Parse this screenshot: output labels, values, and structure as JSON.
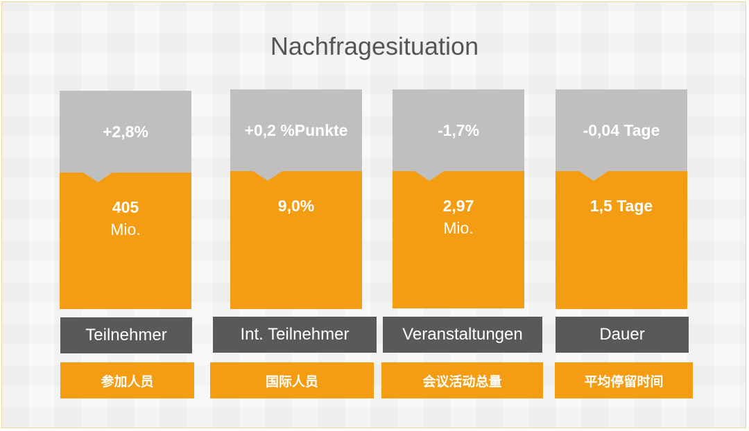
{
  "title": "Nachfragesituation",
  "colors": {
    "accent": "#f49c12",
    "grey_top": "#bfbfbf",
    "label_bg": "#595959"
  },
  "items": [
    {
      "change": "+2,8%",
      "value": "405",
      "unit": "Mio.",
      "label": "Teilnehmer",
      "label_cn": "参加人员"
    },
    {
      "change": "+0,2 %Punkte",
      "value": "9,0%",
      "unit": "",
      "label": "Int. Teilnehmer",
      "label_cn": "国际人员"
    },
    {
      "change": "-1,7%",
      "value": "2,97",
      "unit": "Mio.",
      "label": "Veranstaltungen",
      "label_cn": "会议活动总量"
    },
    {
      "change": "-0,04 Tage",
      "value": "1,5 Tage",
      "unit": "",
      "label": "Dauer",
      "label_cn": "平均停留时间"
    }
  ]
}
